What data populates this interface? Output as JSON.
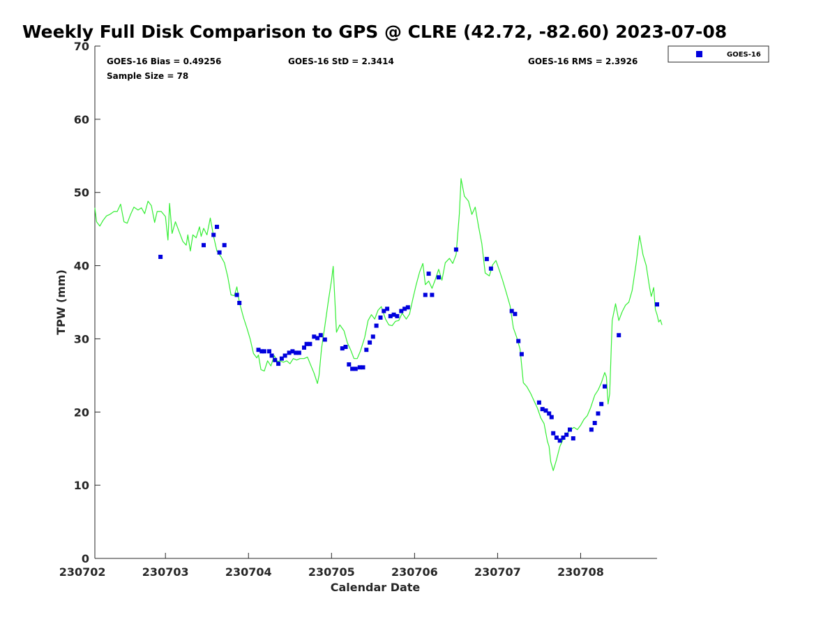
{
  "chart_data": {
    "type": "scatter",
    "title": "Weekly Full Disk Comparison to GPS @ CLRE (42.72, -82.60) 2023-07-08",
    "xlabel": "Calendar Date",
    "ylabel": "TPW (mm)",
    "xlim": [
      2.15,
      8.92
    ],
    "ylim": [
      0,
      70
    ],
    "x_tick_labels": [
      "230702",
      "230703",
      "230704",
      "230705",
      "230706",
      "230707",
      "230708"
    ],
    "x_tick_values": [
      2,
      3,
      4,
      5,
      6,
      7,
      8
    ],
    "y_tick_values": [
      0,
      10,
      20,
      30,
      40,
      50,
      60,
      70
    ],
    "grid": false,
    "legend_position": "top-right, outside plot",
    "stats": {
      "bias": "GOES-16 Bias = 0.49256",
      "std": "GOES-16 StD = 2.3414",
      "rms": "GOES-16 RMS = 2.3926",
      "sample": "Sample Size = 78"
    },
    "series": [
      {
        "name": "GOES-16",
        "kind": "scatter",
        "color": "#0000dd",
        "marker": "square",
        "points": [
          [
            2.94,
            41.2
          ],
          [
            3.46,
            42.8
          ],
          [
            3.58,
            44.2
          ],
          [
            3.62,
            45.3
          ],
          [
            3.65,
            41.8
          ],
          [
            3.71,
            42.8
          ],
          [
            3.86,
            36.0
          ],
          [
            3.89,
            34.9
          ],
          [
            4.12,
            28.5
          ],
          [
            4.16,
            28.3
          ],
          [
            4.19,
            28.3
          ],
          [
            4.25,
            28.3
          ],
          [
            4.28,
            27.7
          ],
          [
            4.32,
            27.1
          ],
          [
            4.36,
            26.6
          ],
          [
            4.4,
            27.3
          ],
          [
            4.44,
            27.7
          ],
          [
            4.49,
            28.1
          ],
          [
            4.53,
            28.3
          ],
          [
            4.57,
            28.1
          ],
          [
            4.61,
            28.1
          ],
          [
            4.67,
            28.8
          ],
          [
            4.7,
            29.3
          ],
          [
            4.74,
            29.3
          ],
          [
            4.79,
            30.3
          ],
          [
            4.83,
            30.1
          ],
          [
            4.87,
            30.5
          ],
          [
            4.92,
            29.9
          ],
          [
            5.13,
            28.7
          ],
          [
            5.17,
            28.9
          ],
          [
            5.21,
            26.5
          ],
          [
            5.25,
            25.9
          ],
          [
            5.29,
            25.9
          ],
          [
            5.34,
            26.1
          ],
          [
            5.38,
            26.1
          ],
          [
            5.42,
            28.5
          ],
          [
            5.46,
            29.5
          ],
          [
            5.5,
            30.3
          ],
          [
            5.54,
            31.8
          ],
          [
            5.59,
            32.9
          ],
          [
            5.63,
            33.8
          ],
          [
            5.67,
            34.1
          ],
          [
            5.71,
            33.1
          ],
          [
            5.75,
            33.3
          ],
          [
            5.79,
            33.1
          ],
          [
            5.84,
            33.8
          ],
          [
            5.88,
            34.1
          ],
          [
            5.92,
            34.3
          ],
          [
            6.13,
            36.0
          ],
          [
            6.17,
            38.9
          ],
          [
            6.21,
            36.0
          ],
          [
            6.29,
            38.4
          ],
          [
            6.5,
            42.2
          ],
          [
            6.87,
            40.9
          ],
          [
            6.92,
            39.6
          ],
          [
            7.17,
            33.8
          ],
          [
            7.21,
            33.4
          ],
          [
            7.25,
            29.7
          ],
          [
            7.29,
            27.9
          ],
          [
            7.5,
            21.3
          ],
          [
            7.54,
            20.4
          ],
          [
            7.58,
            20.2
          ],
          [
            7.62,
            19.8
          ],
          [
            7.65,
            19.3
          ],
          [
            7.67,
            17.1
          ],
          [
            7.71,
            16.5
          ],
          [
            7.75,
            16.1
          ],
          [
            7.79,
            16.5
          ],
          [
            7.83,
            16.9
          ],
          [
            7.87,
            17.6
          ],
          [
            7.91,
            16.4
          ],
          [
            8.13,
            17.6
          ],
          [
            8.17,
            18.5
          ],
          [
            8.21,
            19.8
          ],
          [
            8.25,
            21.1
          ],
          [
            8.29,
            23.5
          ],
          [
            8.46,
            30.5
          ],
          [
            8.92,
            34.7
          ]
        ]
      },
      {
        "name": "",
        "kind": "line",
        "color": "#33ee33",
        "points": [
          [
            2.15,
            47.9
          ],
          [
            2.17,
            46.0
          ],
          [
            2.21,
            45.4
          ],
          [
            2.25,
            46.2
          ],
          [
            2.29,
            46.8
          ],
          [
            2.33,
            47.0
          ],
          [
            2.38,
            47.4
          ],
          [
            2.42,
            47.4
          ],
          [
            2.46,
            48.4
          ],
          [
            2.5,
            46.0
          ],
          [
            2.54,
            45.8
          ],
          [
            2.58,
            47.0
          ],
          [
            2.62,
            48.0
          ],
          [
            2.67,
            47.6
          ],
          [
            2.71,
            47.9
          ],
          [
            2.75,
            47.1
          ],
          [
            2.79,
            48.8
          ],
          [
            2.83,
            48.2
          ],
          [
            2.87,
            45.9
          ],
          [
            2.9,
            47.4
          ],
          [
            2.95,
            47.4
          ],
          [
            3.0,
            46.7
          ],
          [
            3.03,
            43.5
          ],
          [
            3.05,
            48.5
          ],
          [
            3.08,
            44.4
          ],
          [
            3.12,
            46.0
          ],
          [
            3.17,
            44.5
          ],
          [
            3.21,
            43.3
          ],
          [
            3.25,
            42.8
          ],
          [
            3.27,
            44.2
          ],
          [
            3.3,
            42.0
          ],
          [
            3.33,
            44.2
          ],
          [
            3.37,
            43.8
          ],
          [
            3.41,
            45.3
          ],
          [
            3.43,
            44.0
          ],
          [
            3.46,
            45.1
          ],
          [
            3.5,
            44.2
          ],
          [
            3.54,
            46.5
          ],
          [
            3.58,
            44.0
          ],
          [
            3.62,
            42.0
          ],
          [
            3.67,
            41.2
          ],
          [
            3.71,
            40.4
          ],
          [
            3.75,
            38.5
          ],
          [
            3.79,
            36.0
          ],
          [
            3.83,
            35.9
          ],
          [
            3.86,
            37.1
          ],
          [
            3.89,
            35.0
          ],
          [
            3.94,
            32.9
          ],
          [
            3.98,
            31.5
          ],
          [
            4.02,
            30.0
          ],
          [
            4.06,
            28.0
          ],
          [
            4.1,
            27.4
          ],
          [
            4.12,
            27.8
          ],
          [
            4.15,
            25.8
          ],
          [
            4.19,
            25.6
          ],
          [
            4.23,
            27.0
          ],
          [
            4.27,
            26.3
          ],
          [
            4.31,
            27.7
          ],
          [
            4.35,
            26.9
          ],
          [
            4.38,
            27.0
          ],
          [
            4.42,
            26.8
          ],
          [
            4.46,
            27.0
          ],
          [
            4.5,
            26.6
          ],
          [
            4.54,
            27.3
          ],
          [
            4.58,
            27.1
          ],
          [
            4.62,
            27.3
          ],
          [
            4.67,
            27.3
          ],
          [
            4.71,
            27.5
          ],
          [
            4.75,
            26.4
          ],
          [
            4.79,
            25.3
          ],
          [
            4.83,
            23.9
          ],
          [
            4.85,
            25.0
          ],
          [
            4.88,
            28.7
          ],
          [
            4.92,
            31.8
          ],
          [
            4.96,
            35.0
          ],
          [
            5.0,
            38.0
          ],
          [
            5.02,
            39.9
          ],
          [
            5.06,
            30.9
          ],
          [
            5.1,
            31.9
          ],
          [
            5.15,
            31.1
          ],
          [
            5.19,
            29.5
          ],
          [
            5.23,
            28.5
          ],
          [
            5.27,
            27.3
          ],
          [
            5.31,
            27.3
          ],
          [
            5.35,
            28.4
          ],
          [
            5.4,
            30.2
          ],
          [
            5.44,
            32.5
          ],
          [
            5.48,
            33.3
          ],
          [
            5.52,
            32.7
          ],
          [
            5.56,
            33.9
          ],
          [
            5.6,
            34.4
          ],
          [
            5.65,
            32.7
          ],
          [
            5.69,
            31.9
          ],
          [
            5.73,
            31.8
          ],
          [
            5.77,
            32.4
          ],
          [
            5.81,
            32.5
          ],
          [
            5.85,
            33.5
          ],
          [
            5.9,
            32.7
          ],
          [
            5.94,
            33.4
          ],
          [
            5.98,
            35.5
          ],
          [
            6.02,
            37.4
          ],
          [
            6.06,
            39.1
          ],
          [
            6.1,
            40.3
          ],
          [
            6.13,
            37.4
          ],
          [
            6.17,
            37.9
          ],
          [
            6.21,
            36.9
          ],
          [
            6.25,
            38.1
          ],
          [
            6.29,
            39.5
          ],
          [
            6.33,
            38.0
          ],
          [
            6.37,
            40.4
          ],
          [
            6.42,
            41.0
          ],
          [
            6.46,
            40.3
          ],
          [
            6.5,
            41.5
          ],
          [
            6.54,
            47.1
          ],
          [
            6.56,
            51.9
          ],
          [
            6.6,
            49.5
          ],
          [
            6.65,
            48.8
          ],
          [
            6.69,
            47.0
          ],
          [
            6.73,
            48.0
          ],
          [
            6.77,
            45.4
          ],
          [
            6.81,
            43.0
          ],
          [
            6.85,
            39.0
          ],
          [
            6.9,
            38.6
          ],
          [
            6.94,
            40.1
          ],
          [
            6.98,
            40.7
          ],
          [
            7.02,
            39.4
          ],
          [
            7.06,
            38.0
          ],
          [
            7.1,
            36.5
          ],
          [
            7.15,
            34.5
          ],
          [
            7.19,
            31.5
          ],
          [
            7.23,
            30.2
          ],
          [
            7.27,
            28.6
          ],
          [
            7.31,
            24.0
          ],
          [
            7.35,
            23.5
          ],
          [
            7.4,
            22.5
          ],
          [
            7.44,
            21.5
          ],
          [
            7.48,
            20.5
          ],
          [
            7.52,
            19.2
          ],
          [
            7.56,
            18.4
          ],
          [
            7.6,
            16.0
          ],
          [
            7.62,
            15.3
          ],
          [
            7.64,
            13.2
          ],
          [
            7.67,
            12.0
          ],
          [
            7.71,
            13.5
          ],
          [
            7.75,
            15.3
          ],
          [
            7.79,
            16.3
          ],
          [
            7.83,
            17.0
          ],
          [
            7.87,
            17.5
          ],
          [
            7.92,
            17.9
          ],
          [
            7.96,
            17.6
          ],
          [
            8.0,
            18.2
          ],
          [
            8.04,
            19.0
          ],
          [
            8.08,
            19.5
          ],
          [
            8.12,
            20.6
          ],
          [
            8.17,
            22.3
          ],
          [
            8.21,
            23.0
          ],
          [
            8.25,
            24.0
          ],
          [
            8.29,
            25.4
          ],
          [
            8.31,
            24.8
          ],
          [
            8.33,
            21.1
          ],
          [
            8.35,
            22.5
          ],
          [
            8.38,
            32.5
          ],
          [
            8.42,
            34.8
          ],
          [
            8.46,
            32.5
          ],
          [
            8.5,
            33.7
          ],
          [
            8.54,
            34.6
          ],
          [
            8.58,
            35.0
          ],
          [
            8.62,
            36.6
          ],
          [
            8.67,
            40.4
          ],
          [
            8.71,
            44.1
          ],
          [
            8.75,
            41.5
          ],
          [
            8.79,
            40.0
          ],
          [
            8.83,
            37.0
          ],
          [
            8.85,
            35.8
          ],
          [
            8.88,
            37.0
          ],
          [
            8.9,
            34.0
          ],
          [
            8.92,
            33.3
          ],
          [
            8.94,
            32.3
          ],
          [
            8.96,
            32.6
          ],
          [
            8.98,
            31.9
          ]
        ]
      }
    ]
  }
}
